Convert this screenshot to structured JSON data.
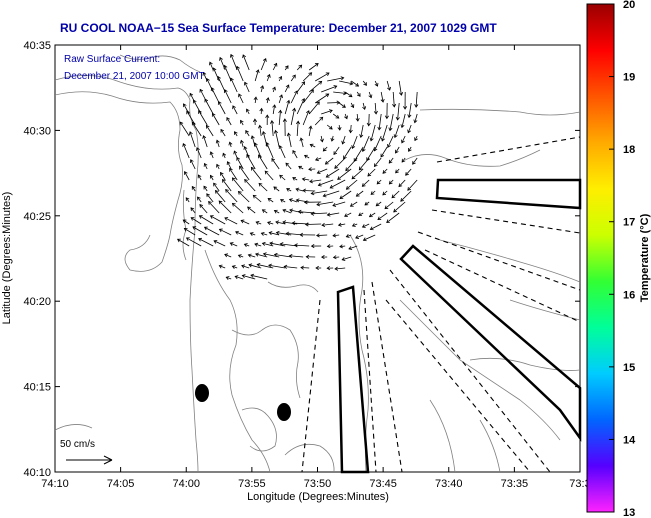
{
  "title": "RU COOL  NOAA−15  Sea Surface Temperature:  December 21, 2007 1029 GMT",
  "annotation": {
    "line1": "Raw Surface Current:",
    "line2": "December 21, 2007 10:00 GMT"
  },
  "scale": {
    "label": "50 cm/s",
    "speed_cm_s": 50
  },
  "axes": {
    "xlabel": "Longitude (Degrees:Minutes)",
    "ylabel": "Latitude (Degrees:Minutes)",
    "x_ticks": [
      "74:10",
      "74:05",
      "74:00",
      "73:55",
      "73:50",
      "73:45",
      "73:40",
      "73:35",
      "73:3"
    ],
    "y_ticks": [
      "40:35",
      "40:30",
      "40:25",
      "40:20",
      "40:15",
      "40:10"
    ]
  },
  "colorbar": {
    "label": "Temperature (°C)",
    "ticks": [
      "20",
      "19",
      "18",
      "17",
      "16",
      "15",
      "14",
      "13"
    ],
    "range": [
      13,
      20
    ],
    "colors": [
      "#ff22ff",
      "#5500ff",
      "#0066ff",
      "#00ccff",
      "#00ff99",
      "#33ff33",
      "#ccff00",
      "#ffee00",
      "#ffaa00",
      "#ff5500",
      "#ff0000",
      "#990000"
    ]
  },
  "colors": {
    "title": "#0000aa",
    "annotation": "#0000aa",
    "axis": "#000000",
    "contour": "#808080",
    "vectors": "#000000"
  }
}
